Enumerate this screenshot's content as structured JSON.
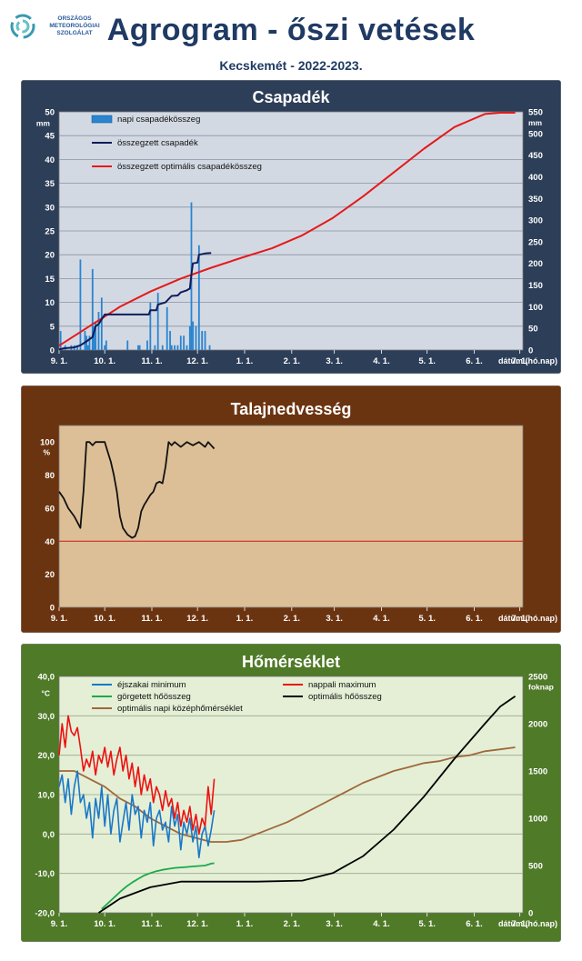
{
  "header": {
    "logo_text": [
      "ORSZÁGOS",
      "METEOROLÓGIAI",
      "SZOLGÁLAT"
    ],
    "title": "Agrogram - őszi vetések",
    "subtitle": "Kecskemét - 2022-2023."
  },
  "months": [
    "9. 1.",
    "10. 1.",
    "11. 1.",
    "12. 1.",
    "1. 1.",
    "2. 1.",
    "3. 1.",
    "4. 1.",
    "5. 1.",
    "6. 1.",
    "7. 1."
  ],
  "x_axis_label": "dátum (hó.nap)",
  "colors": {
    "panel1_bg": "#2d3e58",
    "panel2_bg": "#6b3410",
    "panel3_bg": "#4f7a28",
    "panel1_plot": "#d3d9e3",
    "panel2_plot": "#dcbf96",
    "panel3_plot": "#e4efd6"
  },
  "chart_data": [
    {
      "type": "bar+line",
      "title": "Csapadék",
      "ylabel": "mm",
      "y2label": "mm",
      "ylim": [
        0,
        50
      ],
      "y2lim": [
        0,
        550
      ],
      "yticks": [
        "0",
        "5",
        "10",
        "15",
        "20",
        "25",
        "30",
        "35",
        "40",
        "45",
        "50"
      ],
      "y2ticks": [
        "0",
        "50",
        "100",
        "150",
        "200",
        "250",
        "300",
        "350",
        "400",
        "450",
        "500",
        "550"
      ],
      "legend": [
        "napi csapadékösszeg",
        "összegzett csapadék",
        "összegzett optimális csapadékösszeg"
      ],
      "daily_precip": {
        "day": [
          1,
          4,
          8,
          10,
          12,
          14,
          17,
          18,
          19,
          20,
          22,
          23,
          24,
          26,
          28,
          30,
          31,
          45,
          52,
          53,
          58,
          60,
          63,
          65,
          68,
          71,
          73,
          74,
          76,
          78,
          80,
          82,
          84,
          86,
          87,
          88,
          90,
          92,
          94,
          96,
          99
        ],
        "value": [
          4,
          1,
          1,
          1,
          1,
          19,
          4,
          3,
          1,
          3,
          17,
          5,
          6,
          8,
          11,
          1,
          2,
          2,
          1,
          1,
          2,
          10,
          1,
          12,
          1,
          9,
          4,
          1,
          1,
          1,
          3,
          3,
          1,
          5,
          31,
          6,
          5,
          22,
          4,
          4,
          1
        ]
      },
      "cumulative_precip": {
        "day": [
          0,
          3,
          10,
          14,
          18,
          22,
          24,
          26,
          30,
          45,
          56,
          59,
          60,
          64,
          65,
          70,
          74,
          78,
          80,
          84,
          86,
          87,
          88,
          91,
          92,
          96,
          100
        ],
        "value": [
          1,
          4,
          6,
          11,
          20,
          30,
          55,
          60,
          82,
          82,
          82,
          82,
          92,
          92,
          105,
          110,
          125,
          126,
          133,
          138,
          142,
          175,
          200,
          202,
          220,
          223,
          224
        ]
      },
      "optimal_precip": {
        "day": [
          0,
          20,
          40,
          60,
          80,
          100,
          120,
          140,
          160,
          180,
          200,
          220,
          240,
          260,
          280,
          290,
          300
        ],
        "value": [
          10,
          55,
          100,
          135,
          165,
          190,
          213,
          235,
          265,
          305,
          355,
          410,
          465,
          515,
          545,
          548,
          548
        ]
      }
    },
    {
      "type": "line",
      "title": "Talajnedvesség",
      "ylabel": "%",
      "ylim": [
        0,
        110
      ],
      "yticks": [
        "0",
        "20",
        "40",
        "60",
        "80",
        "100"
      ],
      "threshold": 40,
      "soil_moisture": {
        "day": [
          0,
          3,
          6,
          10,
          14,
          16,
          18,
          20,
          22,
          24,
          26,
          28,
          30,
          32,
          34,
          36,
          38,
          40,
          42,
          45,
          48,
          50,
          52,
          54,
          56,
          60,
          62,
          64,
          66,
          68,
          70,
          72,
          74,
          76,
          80,
          84,
          88,
          92,
          96,
          98,
          102
        ],
        "value": [
          70,
          66,
          60,
          55,
          48,
          70,
          100,
          100,
          98,
          100,
          100,
          100,
          100,
          94,
          88,
          80,
          70,
          55,
          48,
          44,
          42,
          43,
          48,
          58,
          62,
          68,
          70,
          75,
          76,
          75,
          85,
          100,
          98,
          100,
          97,
          100,
          98,
          100,
          97,
          100,
          96
        ]
      }
    },
    {
      "type": "line",
      "title": "Hőmérséklet",
      "ylabel": "°C",
      "y2label": "foknap",
      "ylim": [
        -20,
        40
      ],
      "y2lim": [
        0,
        2500
      ],
      "yticks": [
        "-20,0",
        "-10,0",
        "0,0",
        "10,0",
        "20,0",
        "30,0",
        "40,0"
      ],
      "y2ticks": [
        "0",
        "500",
        "1000",
        "1500",
        "2000",
        "2500"
      ],
      "legend": [
        "éjszakai minimum",
        "nappali maximum",
        "görgetett hőösszeg",
        "optimális hőösszeg",
        "optimális napi középhőmérséklet"
      ],
      "night_min": {
        "day": [
          0,
          2,
          4,
          6,
          8,
          10,
          12,
          14,
          16,
          18,
          20,
          22,
          24,
          26,
          28,
          30,
          32,
          34,
          36,
          38,
          40,
          42,
          44,
          46,
          48,
          50,
          52,
          54,
          56,
          58,
          60,
          62,
          64,
          66,
          68,
          70,
          72,
          74,
          76,
          78,
          80,
          82,
          84,
          86,
          88,
          90,
          92,
          94,
          96,
          98,
          100,
          102
        ],
        "value": [
          12,
          15,
          8,
          14,
          5,
          12,
          16,
          8,
          10,
          4,
          8,
          -1,
          9,
          4,
          12,
          2,
          10,
          0,
          6,
          9,
          -2,
          3,
          8,
          1,
          10,
          5,
          7,
          -1,
          6,
          3,
          8,
          -3,
          4,
          6,
          1,
          3,
          -2,
          7,
          2,
          5,
          -4,
          3,
          0,
          4,
          -2,
          2,
          -6,
          0,
          2,
          -3,
          1,
          6
        ]
      },
      "day_max": {
        "day": [
          0,
          2,
          4,
          6,
          8,
          10,
          12,
          14,
          16,
          18,
          20,
          22,
          24,
          26,
          28,
          30,
          32,
          34,
          36,
          38,
          40,
          42,
          44,
          46,
          48,
          50,
          52,
          54,
          56,
          58,
          60,
          62,
          64,
          66,
          68,
          70,
          72,
          74,
          76,
          78,
          80,
          82,
          84,
          86,
          88,
          90,
          92,
          94,
          96,
          98,
          100,
          102
        ],
        "value": [
          20,
          28,
          22,
          30,
          26,
          25,
          27,
          22,
          16,
          19,
          17,
          21,
          15,
          20,
          18,
          22,
          17,
          21,
          15,
          19,
          22,
          16,
          20,
          14,
          18,
          12,
          17,
          10,
          15,
          11,
          14,
          8,
          12,
          10,
          6,
          11,
          7,
          9,
          4,
          8,
          2,
          6,
          3,
          7,
          1,
          5,
          0,
          4,
          2,
          12,
          5,
          14
        ]
      },
      "rolling_heat_sum": {
        "day": [
          28,
          32,
          36,
          40,
          44,
          48,
          52,
          56,
          60,
          64,
          68,
          72,
          76,
          80,
          84,
          88,
          92,
          96,
          100,
          102
        ],
        "value": [
          40,
          100,
          160,
          220,
          275,
          320,
          360,
          395,
          420,
          440,
          455,
          465,
          475,
          480,
          485,
          490,
          495,
          500,
          520,
          525
        ]
      },
      "optimal_heat_sum": {
        "day": [
          26,
          40,
          60,
          80,
          100,
          130,
          160,
          180,
          200,
          220,
          240,
          260,
          280,
          290,
          300
        ],
        "value": [
          0,
          150,
          270,
          330,
          330,
          330,
          340,
          420,
          600,
          880,
          1230,
          1630,
          2000,
          2180,
          2290
        ]
      },
      "optimal_daily_mean": {
        "day": [
          0,
          10,
          20,
          30,
          40,
          50,
          60,
          70,
          80,
          90,
          100,
          110,
          120,
          130,
          140,
          150,
          160,
          170,
          180,
          190,
          200,
          210,
          220,
          230,
          240,
          250,
          260,
          270,
          280,
          290,
          300
        ],
        "value": [
          16,
          16,
          14,
          12,
          9,
          7,
          4,
          2,
          0,
          -1,
          -2,
          -2,
          -1.5,
          0,
          1.5,
          3,
          5,
          7,
          9,
          11,
          13,
          14.5,
          16,
          17,
          18,
          18.5,
          19.5,
          20,
          21,
          21.5,
          22
        ]
      }
    }
  ]
}
